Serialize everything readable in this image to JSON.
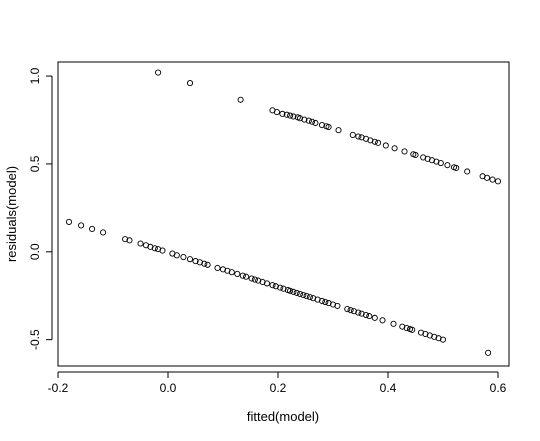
{
  "chart_data": {
    "type": "scatter",
    "title": "",
    "xlabel": "fitted(model)",
    "ylabel": "residuals(model)",
    "xlim": [
      -0.2,
      0.62
    ],
    "ylim": [
      -0.65,
      1.08
    ],
    "xticks": [
      -0.2,
      0.0,
      0.2,
      0.4,
      0.6
    ],
    "xtick_labels": [
      "-0.2",
      "0.0",
      "0.2",
      "0.4",
      "0.6"
    ],
    "yticks": [
      -0.5,
      0.0,
      0.5,
      1.0
    ],
    "ytick_labels": [
      "-0.5",
      "0.0",
      "0.5",
      "1.0"
    ],
    "grid": false,
    "legend": "none",
    "marker": "open-circle",
    "series": [
      {
        "x": [
          -0.018,
          0.04,
          0.132,
          0.19,
          0.198,
          0.208,
          0.216,
          0.222,
          0.228,
          0.236,
          0.24,
          0.248,
          0.256,
          0.262,
          0.268,
          0.28,
          0.288,
          0.292,
          0.31,
          0.336,
          0.346,
          0.352,
          0.36,
          0.368,
          0.376,
          0.382,
          0.396,
          0.412,
          0.43,
          0.446,
          0.45,
          0.464,
          0.472,
          0.48,
          0.488,
          0.496,
          0.508,
          0.52,
          0.524,
          0.544,
          0.572,
          0.58,
          0.59,
          0.6
        ],
        "y": [
          1.02,
          0.96,
          0.865,
          0.805,
          0.795,
          0.785,
          0.78,
          0.775,
          0.77,
          0.765,
          0.76,
          0.752,
          0.746,
          0.74,
          0.733,
          0.721,
          0.714,
          0.71,
          0.692,
          0.665,
          0.656,
          0.651,
          0.643,
          0.634,
          0.626,
          0.62,
          0.605,
          0.589,
          0.571,
          0.555,
          0.551,
          0.537,
          0.529,
          0.521,
          0.513,
          0.505,
          0.493,
          0.481,
          0.477,
          0.457,
          0.43,
          0.421,
          0.411,
          0.401
        ]
      },
      {
        "x": [
          -0.18,
          -0.158,
          -0.138,
          -0.118,
          -0.078,
          -0.07,
          -0.05,
          -0.04,
          -0.032,
          -0.024,
          -0.018,
          -0.01,
          0.008,
          0.016,
          0.028,
          0.04,
          0.05,
          0.058,
          0.066,
          0.072,
          0.09,
          0.1,
          0.108,
          0.116,
          0.126,
          0.136,
          0.142,
          0.152,
          0.158,
          0.164,
          0.172,
          0.18,
          0.19,
          0.196,
          0.204,
          0.21,
          0.218,
          0.222,
          0.228,
          0.234,
          0.24,
          0.246,
          0.252,
          0.258,
          0.264,
          0.272,
          0.28,
          0.286,
          0.292,
          0.3,
          0.308,
          0.326,
          0.332,
          0.338,
          0.346,
          0.352,
          0.36,
          0.366,
          0.376,
          0.39,
          0.41,
          0.426,
          0.434,
          0.44,
          0.444,
          0.46,
          0.468,
          0.476,
          0.484,
          0.492,
          0.5,
          0.582
        ],
        "y": [
          0.17,
          0.15,
          0.13,
          0.11,
          0.072,
          0.065,
          0.047,
          0.037,
          0.028,
          0.02,
          0.015,
          0.007,
          -0.01,
          -0.02,
          -0.03,
          -0.042,
          -0.053,
          -0.06,
          -0.068,
          -0.074,
          -0.092,
          -0.1,
          -0.108,
          -0.116,
          -0.126,
          -0.136,
          -0.142,
          -0.152,
          -0.158,
          -0.164,
          -0.172,
          -0.18,
          -0.19,
          -0.196,
          -0.204,
          -0.21,
          -0.218,
          -0.222,
          -0.228,
          -0.234,
          -0.24,
          -0.246,
          -0.252,
          -0.258,
          -0.264,
          -0.272,
          -0.28,
          -0.286,
          -0.292,
          -0.3,
          -0.308,
          -0.326,
          -0.332,
          -0.338,
          -0.346,
          -0.352,
          -0.36,
          -0.366,
          -0.376,
          -0.39,
          -0.41,
          -0.426,
          -0.434,
          -0.44,
          -0.444,
          -0.46,
          -0.468,
          -0.476,
          -0.484,
          -0.492,
          -0.5,
          -0.575
        ]
      }
    ]
  }
}
